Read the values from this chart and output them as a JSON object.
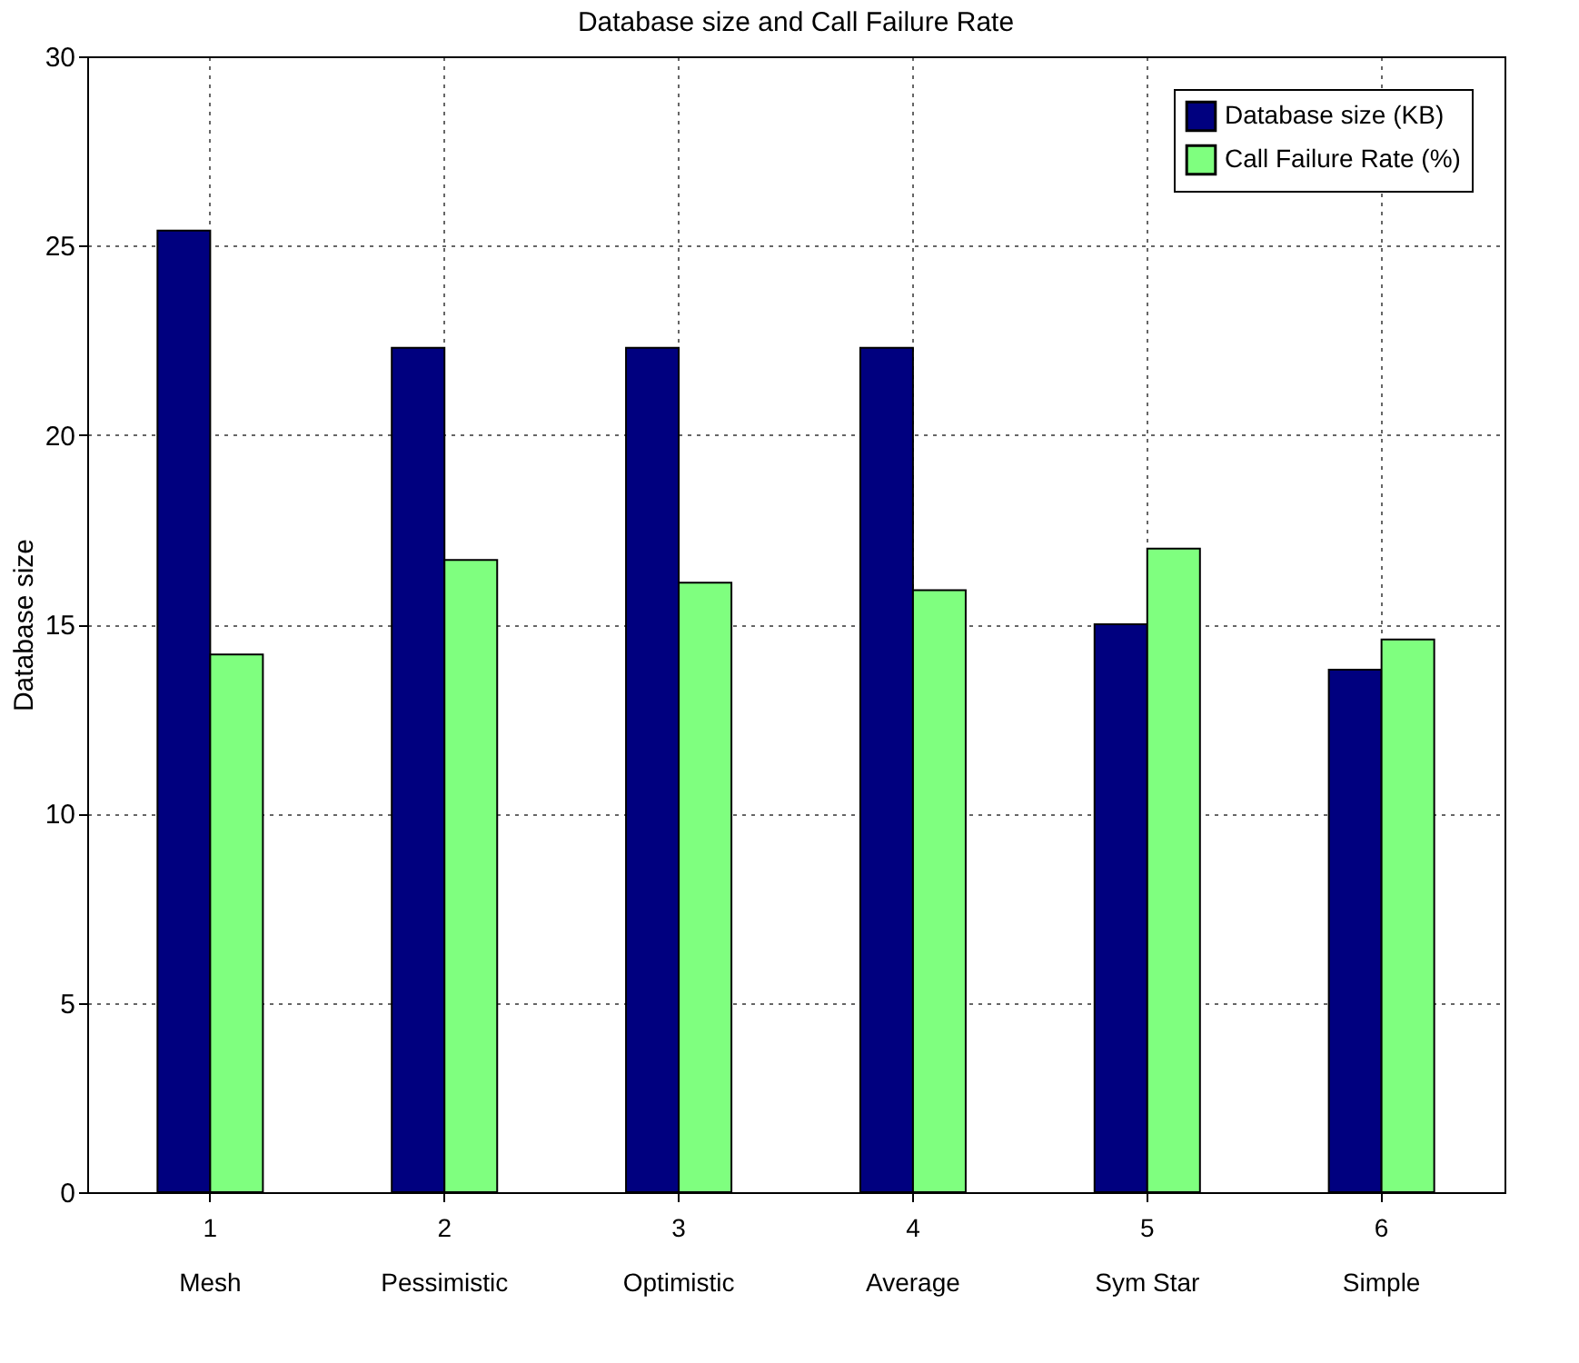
{
  "chart_data": {
    "type": "bar",
    "title": "Database size and Call Failure Rate",
    "ylabel": "Database size",
    "categories": [
      "1",
      "2",
      "3",
      "4",
      "5",
      "6"
    ],
    "annotations": [
      "Mesh",
      "Pessimistic",
      "Optimistic",
      "Average",
      "Sym Star",
      "Simple"
    ],
    "series": [
      {
        "name": "Database size (KB)",
        "color": "#00007f",
        "values": [
          25.4,
          22.3,
          22.3,
          22.3,
          15.0,
          13.8
        ]
      },
      {
        "name": "Call Failure Rate (%)",
        "color": "#7fff7f",
        "values": [
          14.2,
          16.7,
          16.1,
          15.9,
          17.0,
          14.6
        ]
      }
    ],
    "ylim": [
      0,
      30
    ],
    "yticks": [
      0,
      5,
      10,
      15,
      20,
      25,
      30
    ],
    "grid": true,
    "legend": "top right"
  }
}
